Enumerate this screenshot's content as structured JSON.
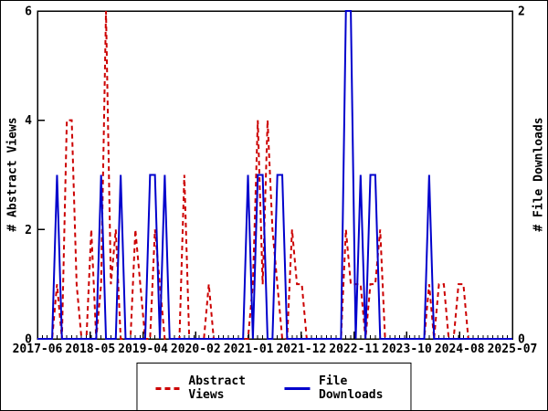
{
  "chart_data": {
    "type": "line",
    "title": "",
    "x_start_month": "2017-06",
    "x_end_month": "2025-07",
    "x_months_count": 98,
    "x_tick_labels": [
      "2017-06",
      "2018-05",
      "2019-04",
      "2020-02",
      "2021-01",
      "2021-12",
      "2022-11",
      "2023-10",
      "2024-08",
      "2025-07"
    ],
    "y_left": {
      "label": "# Abstract Views",
      "min": 0,
      "max": 6,
      "ticks": [
        0,
        2,
        4,
        6
      ]
    },
    "y_right": {
      "label": "# File Downloads",
      "min": 0,
      "max": 2,
      "ticks": [
        0,
        2
      ]
    },
    "grid": false,
    "legend_position": "bottom-center",
    "series": [
      {
        "name": "Abstract Views",
        "axis": "left",
        "color": "#cc0000",
        "style": "dashed",
        "values": [
          0,
          0,
          0,
          0,
          1,
          0,
          4,
          4,
          1,
          0,
          0,
          2,
          0,
          1,
          6,
          1,
          2,
          0,
          0,
          0,
          2,
          1,
          0,
          0,
          2,
          1,
          0,
          0,
          0,
          0,
          3,
          0,
          0,
          0,
          0,
          1,
          0,
          0,
          0,
          0,
          0,
          0,
          0,
          0,
          1,
          4,
          1,
          4,
          2,
          1,
          0,
          0,
          2,
          1,
          1,
          0,
          0,
          0,
          0,
          0,
          0,
          0,
          0,
          2,
          1,
          1,
          1,
          0,
          1,
          1,
          2,
          0,
          0,
          0,
          0,
          0,
          0,
          0,
          0,
          0,
          1,
          0,
          1,
          1,
          0,
          0,
          1,
          1,
          0,
          0,
          0,
          0,
          0,
          0,
          0,
          0,
          0,
          0
        ]
      },
      {
        "name": "File Downloads",
        "axis": "right",
        "color": "#0000cc",
        "style": "solid",
        "values": [
          0,
          0,
          0,
          0,
          1,
          0,
          0,
          0,
          0,
          0,
          0,
          0,
          0,
          1,
          0,
          0,
          0,
          1,
          0,
          0,
          0,
          0,
          0,
          1,
          1,
          0,
          1,
          0,
          0,
          0,
          0,
          0,
          0,
          0,
          0,
          0,
          0,
          0,
          0,
          0,
          0,
          0,
          0,
          1,
          0,
          1,
          1,
          0,
          0,
          1,
          1,
          0,
          0,
          0,
          0,
          0,
          0,
          0,
          0,
          0,
          0,
          0,
          0,
          2,
          2,
          0,
          1,
          0,
          1,
          1,
          0,
          0,
          0,
          0,
          0,
          0,
          0,
          0,
          0,
          0,
          1,
          0,
          0,
          0,
          0,
          0,
          0,
          0,
          0,
          0,
          0,
          0,
          0,
          0,
          0,
          0,
          0,
          0
        ]
      }
    ]
  },
  "colors": {
    "views": "#cc0000",
    "downloads": "#0000cc",
    "axis": "#000000",
    "background": "#ffffff"
  }
}
